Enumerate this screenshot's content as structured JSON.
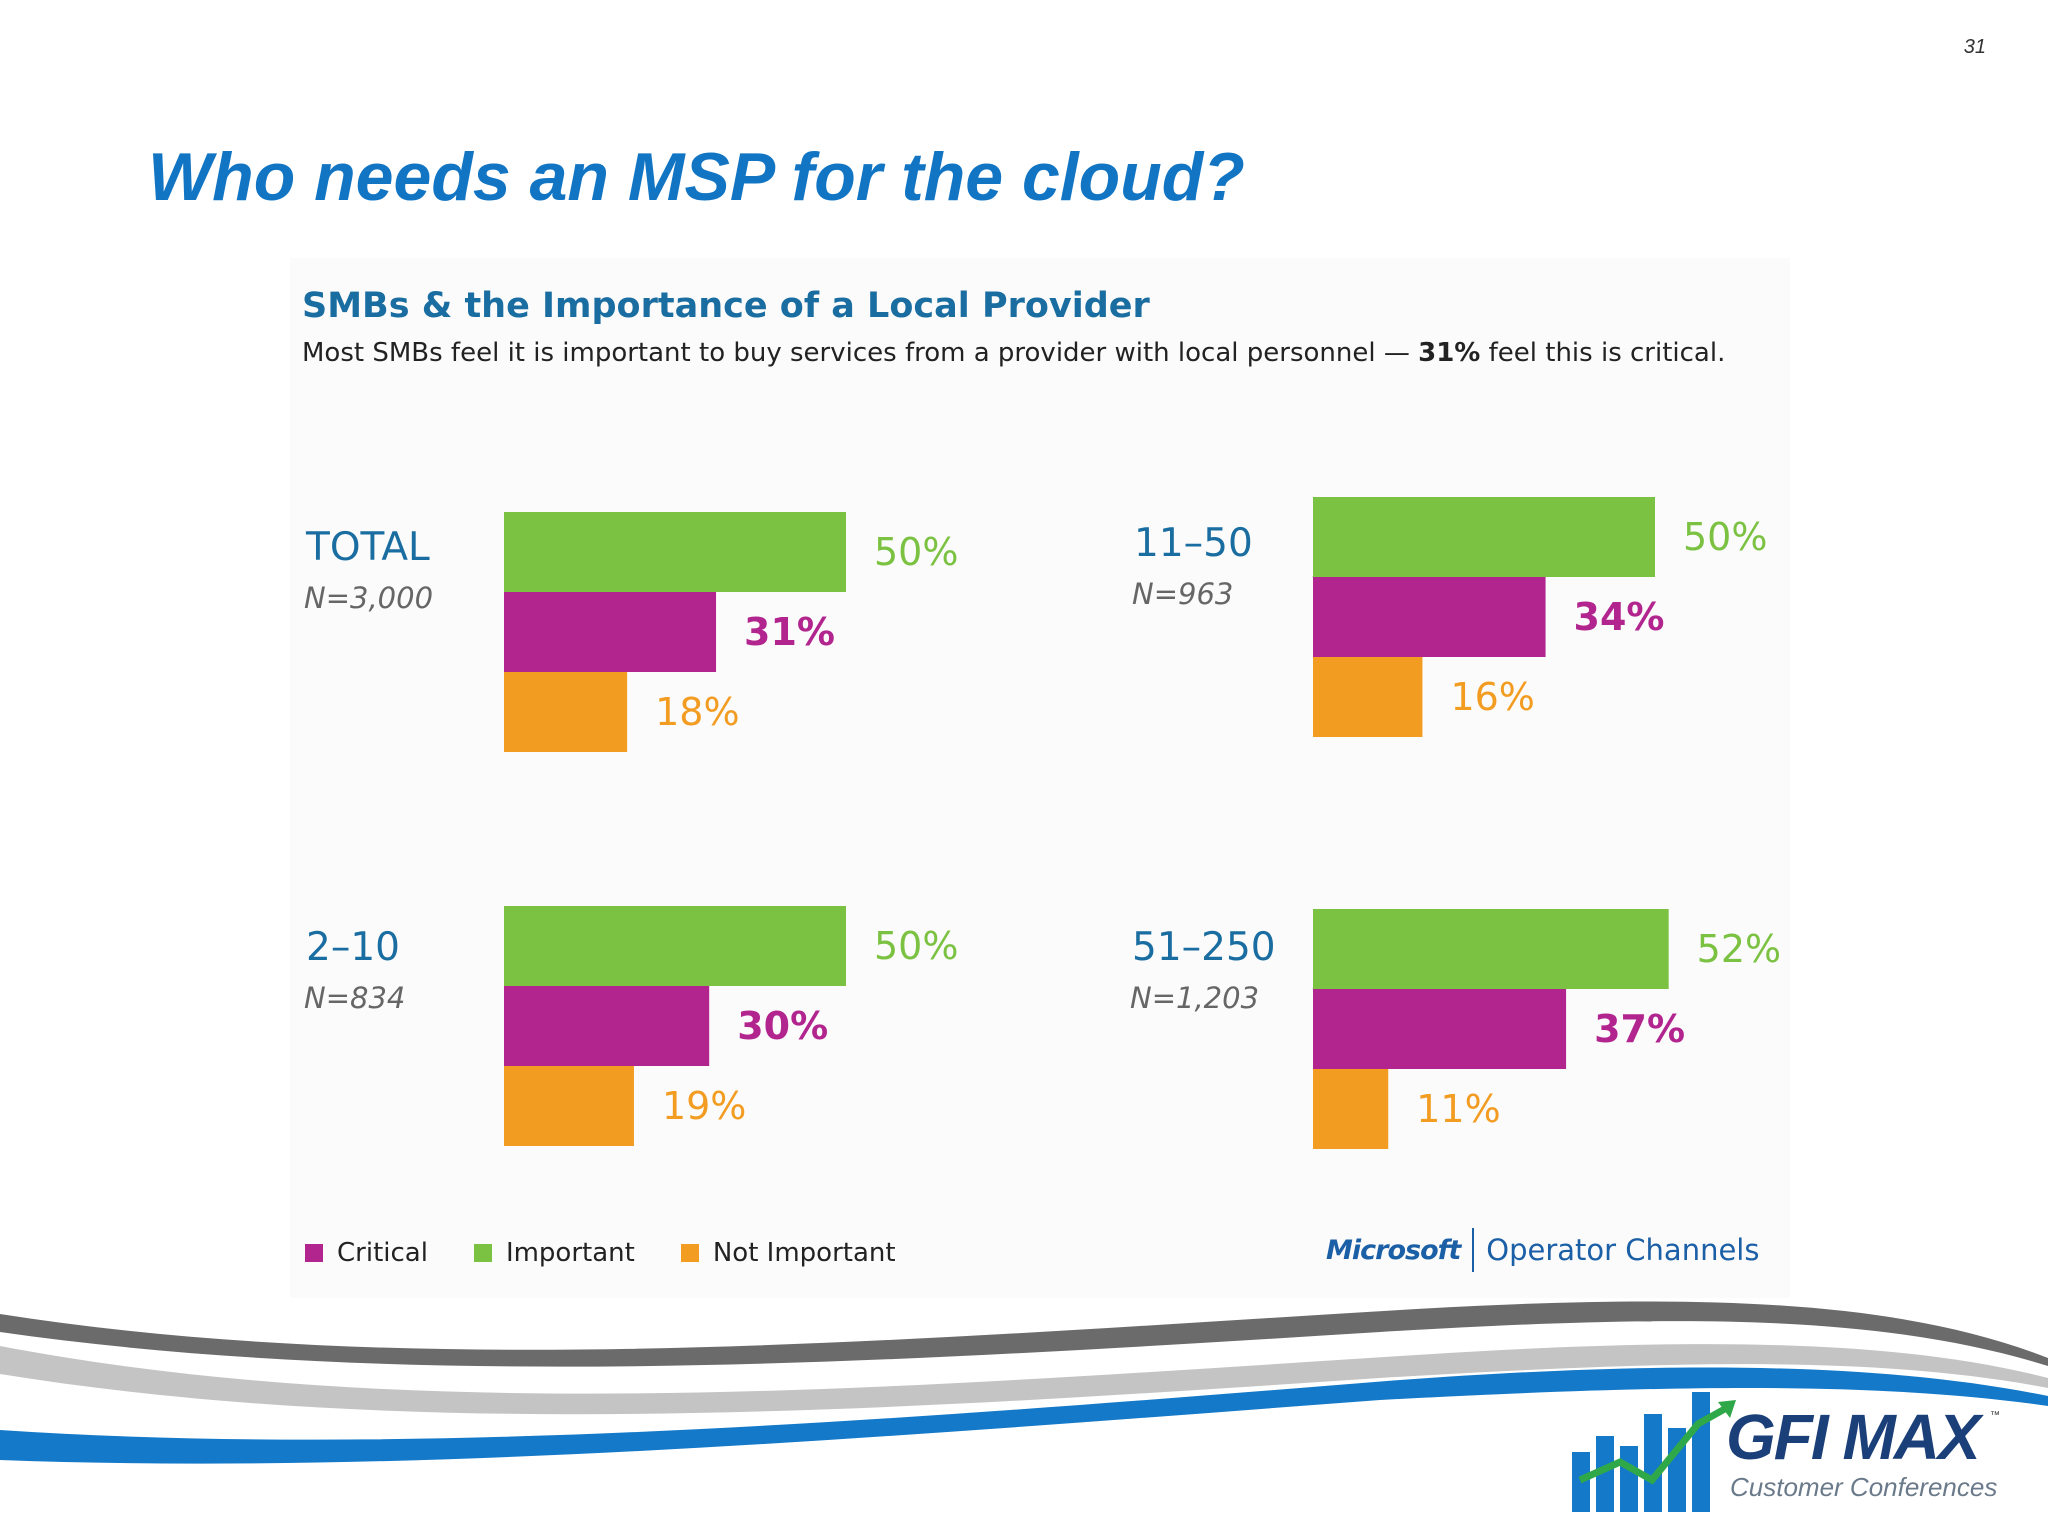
{
  "slide": {
    "number": "31",
    "title": "Who needs an MSP for the cloud?"
  },
  "chart_heading": "SMBs & the Importance of a Local Provider",
  "chart_subheading": {
    "before": "Most SMBs feel it is important to buy services from a provider with local personnel — ",
    "bold": "31%",
    "after": " feel this is critical."
  },
  "colors": {
    "important": "#7cc242",
    "critical": "#b2258f",
    "not_important": "#f39c22",
    "heading": "#1a6da1",
    "title": "#1175c4"
  },
  "chart_data": [
    {
      "type": "bar",
      "orientation": "horizontal",
      "title": "TOTAL",
      "subtitle": "N=3,000",
      "categories": [
        "Important",
        "Critical",
        "Not Important"
      ],
      "values": [
        50,
        31,
        18
      ],
      "labels": [
        "50%",
        "31%",
        "18%"
      ]
    },
    {
      "type": "bar",
      "orientation": "horizontal",
      "title": "11–50",
      "subtitle": "N=963",
      "categories": [
        "Important",
        "Critical",
        "Not Important"
      ],
      "values": [
        50,
        34,
        16
      ],
      "labels": [
        "50%",
        "34%",
        "16%"
      ]
    },
    {
      "type": "bar",
      "orientation": "horizontal",
      "title": "2–10",
      "subtitle": "N=834",
      "categories": [
        "Important",
        "Critical",
        "Not Important"
      ],
      "values": [
        50,
        30,
        19
      ],
      "labels": [
        "50%",
        "30%",
        "19%"
      ]
    },
    {
      "type": "bar",
      "orientation": "horizontal",
      "title": "51–250",
      "subtitle": "N=1,203",
      "categories": [
        "Important",
        "Critical",
        "Not Important"
      ],
      "values": [
        52,
        37,
        11
      ],
      "labels": [
        "52%",
        "37%",
        "11%"
      ]
    }
  ],
  "legend": [
    {
      "label": "Critical",
      "color": "#b2258f"
    },
    {
      "label": "Important",
      "color": "#7cc242"
    },
    {
      "label": "Not Important",
      "color": "#f39c22"
    }
  ],
  "source": {
    "brand": "Microsoft",
    "channel": "Operator Channels"
  },
  "footer_logo": {
    "name": "GFI MAX",
    "tagline": "Customer Conferences",
    "trademark": "™"
  }
}
